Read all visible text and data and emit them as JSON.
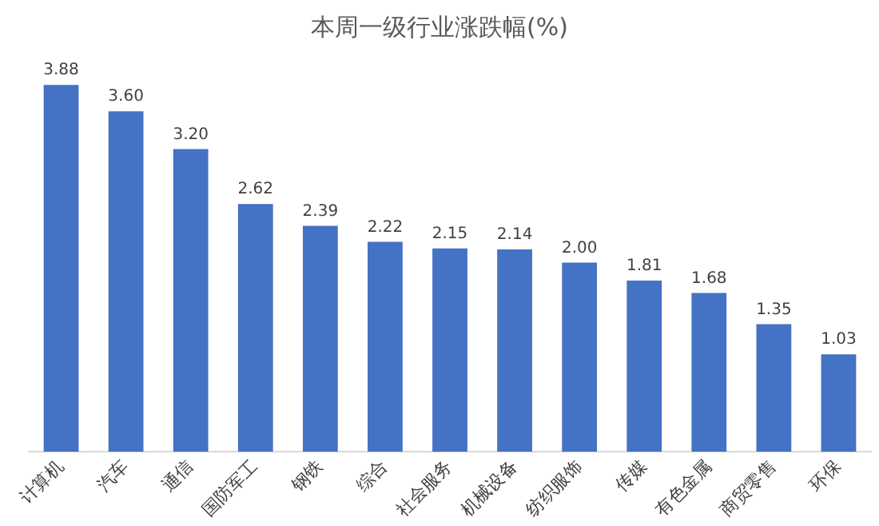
{
  "chart_data": {
    "type": "bar",
    "title": "本周一级行业涨跌幅(%)",
    "categories": [
      "计算机",
      "汽车",
      "通信",
      "国防军工",
      "钢铁",
      "综合",
      "社会服务",
      "机械设备",
      "纺织服饰",
      "传媒",
      "有色金属",
      "商贸零售",
      "环保"
    ],
    "values": [
      3.88,
      3.6,
      3.2,
      2.62,
      2.39,
      2.22,
      2.15,
      2.14,
      2.0,
      1.81,
      1.68,
      1.35,
      1.03
    ],
    "value_labels": [
      "3.88",
      "3.60",
      "3.20",
      "2.62",
      "2.39",
      "2.22",
      "2.15",
      "2.14",
      "2.00",
      "1.81",
      "1.68",
      "1.35",
      "1.03"
    ],
    "color": "#4472c4",
    "grid": false,
    "tick_labels": "x"
  }
}
